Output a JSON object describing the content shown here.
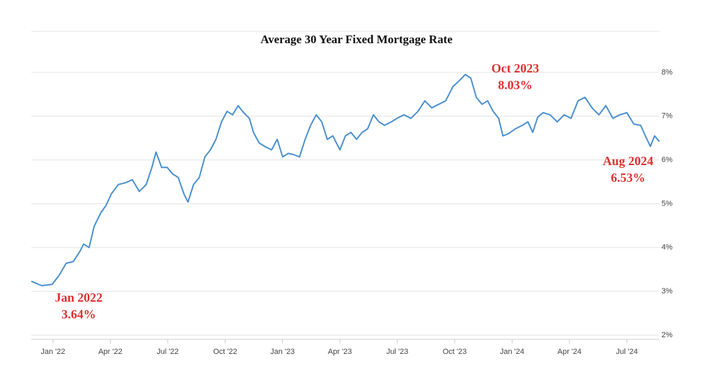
{
  "chart_data": {
    "type": "line",
    "title": "Average 30 Year Fixed Mortgage Rate",
    "x": [
      -1.13,
      -0.58,
      -0.04,
      0.33,
      0.69,
      1.06,
      1.42,
      1.6,
      1.89,
      2.15,
      2.51,
      2.77,
      3.06,
      3.42,
      3.79,
      4.15,
      4.51,
      4.88,
      5.17,
      5.39,
      5.68,
      5.97,
      6.26,
      6.55,
      6.84,
      7.06,
      7.35,
      7.65,
      7.94,
      8.23,
      8.52,
      8.81,
      9.1,
      9.39,
      9.68,
      9.97,
      10.27,
      10.48,
      10.78,
      11.07,
      11.43,
      11.72,
      12.01,
      12.3,
      12.6,
      12.89,
      13.18,
      13.47,
      13.76,
      14.05,
      14.34,
      14.63,
      15.0,
      15.29,
      15.58,
      15.87,
      16.16,
      16.45,
      16.75,
      17.04,
      17.33,
      17.69,
      17.98,
      18.35,
      18.71,
      19.08,
      19.44,
      19.8,
      20.17,
      20.53,
      20.9,
      21.26,
      21.55,
      21.84,
      22.13,
      22.43,
      22.72,
      23.01,
      23.3,
      23.52,
      23.81,
      24.17,
      24.54,
      24.83,
      25.08,
      25.34,
      25.63,
      25.99,
      26.36,
      26.72,
      27.08,
      27.45,
      27.81,
      28.18,
      28.54,
      28.9,
      29.27,
      29.63,
      30.0,
      30.36,
      30.72,
      31.02,
      31.23,
      31.45,
      31.7
    ],
    "series": [
      {
        "name": "30 Year Fixed",
        "color": "#4a8fd0",
        "values": [
          3.23,
          3.13,
          3.16,
          3.37,
          3.64,
          3.68,
          3.92,
          4.08,
          4.0,
          4.48,
          4.8,
          4.96,
          5.23,
          5.44,
          5.48,
          5.55,
          5.28,
          5.44,
          5.83,
          6.18,
          5.83,
          5.83,
          5.68,
          5.6,
          5.23,
          5.04,
          5.44,
          5.6,
          6.07,
          6.23,
          6.47,
          6.87,
          7.11,
          7.03,
          7.24,
          7.08,
          6.95,
          6.63,
          6.39,
          6.31,
          6.23,
          6.47,
          6.07,
          6.15,
          6.12,
          6.07,
          6.47,
          6.79,
          7.03,
          6.87,
          6.47,
          6.55,
          6.23,
          6.55,
          6.63,
          6.47,
          6.63,
          6.71,
          7.03,
          6.87,
          6.79,
          6.87,
          6.95,
          7.03,
          6.95,
          7.11,
          7.35,
          7.19,
          7.27,
          7.35,
          7.67,
          7.82,
          7.95,
          7.87,
          7.43,
          7.27,
          7.35,
          7.11,
          6.95,
          6.55,
          6.6,
          6.71,
          6.79,
          6.87,
          6.63,
          6.98,
          7.08,
          7.03,
          6.87,
          7.03,
          6.95,
          7.35,
          7.43,
          7.19,
          7.03,
          7.24,
          6.95,
          7.03,
          7.08,
          6.82,
          6.79,
          6.5,
          6.31,
          6.55,
          6.42
        ]
      }
    ],
    "xlim": [
      -1.13,
      31.7
    ],
    "xticks": [
      {
        "value": 0,
        "label": "Jan '22"
      },
      {
        "value": 3,
        "label": "Apr '22"
      },
      {
        "value": 6,
        "label": "Jul '22"
      },
      {
        "value": 9,
        "label": "Oct '22"
      },
      {
        "value": 12,
        "label": "Jan '23"
      },
      {
        "value": 15,
        "label": "Apr '23"
      },
      {
        "value": 18,
        "label": "Jul '23"
      },
      {
        "value": 21,
        "label": "Oct '23"
      },
      {
        "value": 24,
        "label": "Jan '24"
      },
      {
        "value": 27,
        "label": "Apr '24"
      },
      {
        "value": 30,
        "label": "Jul '24"
      }
    ],
    "ylim": [
      2,
      9
    ],
    "yticks": [
      {
        "value": 2,
        "label": "2%"
      },
      {
        "value": 3,
        "label": "3%"
      },
      {
        "value": 4,
        "label": "4%"
      },
      {
        "value": 5,
        "label": "5%"
      },
      {
        "value": 6,
        "label": "6%"
      },
      {
        "value": 7,
        "label": "7%"
      },
      {
        "value": 8,
        "label": "8%"
      }
    ],
    "grid": true,
    "annotations": [
      [
        "Jan 2022",
        "3.64%"
      ],
      [
        "Oct 2023",
        "8.03%"
      ],
      [
        "Aug 2024",
        "6.53%"
      ]
    ]
  }
}
